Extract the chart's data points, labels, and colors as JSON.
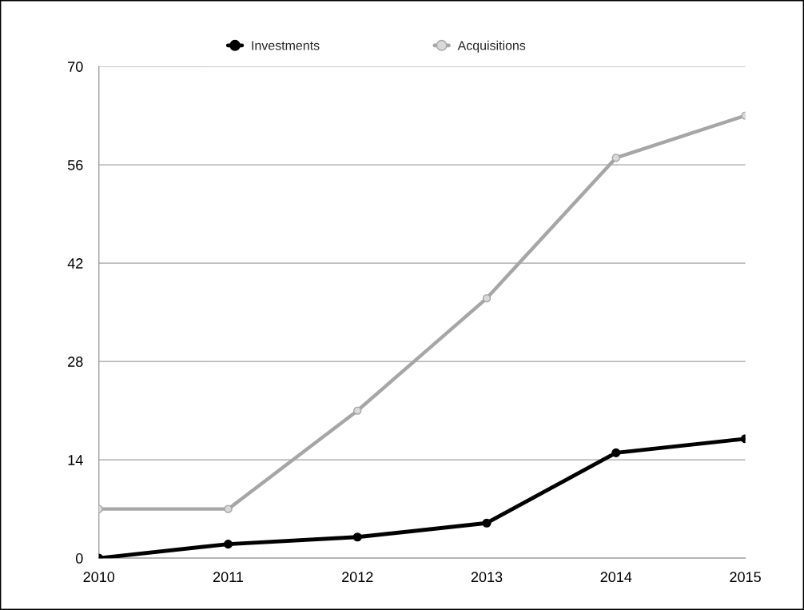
{
  "chart_data": {
    "type": "line",
    "categories": [
      "2010",
      "2011",
      "2012",
      "2013",
      "2014",
      "2015"
    ],
    "series": [
      {
        "name": "Investments",
        "color": "#000000",
        "values": [
          0,
          2,
          3,
          5,
          15,
          17
        ]
      },
      {
        "name": "Acquisitions",
        "color": "#a6a6a6",
        "values": [
          7,
          7,
          21,
          37,
          57,
          63
        ]
      }
    ],
    "ylim": [
      0,
      70
    ],
    "yticks": [
      0,
      14,
      28,
      42,
      56,
      70
    ],
    "grid": "y",
    "legend": "top",
    "marker": "circle",
    "line_style": "solid"
  }
}
